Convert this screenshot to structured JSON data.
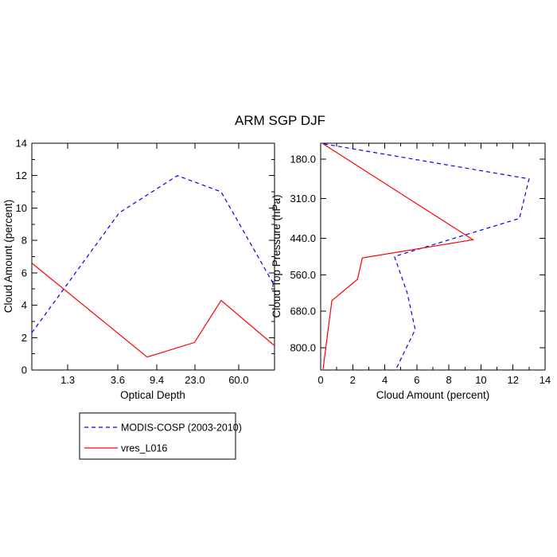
{
  "title": "ARM SGP DJF",
  "colors": {
    "modis": "#0000ff",
    "model": "#ff0000",
    "frame": "#000000",
    "background": "#ffffff"
  },
  "legend": {
    "entries": [
      {
        "label": "MODIS-COSP (2003-2010)",
        "color": "#0000ff",
        "dashed": true
      },
      {
        "label": "vres_L016",
        "color": "#ff0000",
        "dashed": false
      }
    ]
  },
  "chart_data": [
    {
      "id": "tau",
      "type": "line",
      "title": "",
      "xlabel": "Optical Depth",
      "ylabel": "Cloud Amount (percent)",
      "x_axis": {
        "kind": "fraction-of-axis (optical depth bins, nonlinear)",
        "min": 0,
        "max": 1,
        "ticks": [
          {
            "label": "1.3",
            "value": 0.148
          },
          {
            "label": "3.6",
            "value": 0.354
          },
          {
            "label": "9.4",
            "value": 0.515
          },
          {
            "label": "23.0",
            "value": 0.672
          },
          {
            "label": "60.0",
            "value": 0.852
          }
        ]
      },
      "y_axis": {
        "kind": "linear",
        "min": 0,
        "max": 14,
        "minor_step": 1,
        "ticks": [
          {
            "label": "0",
            "value": 0
          },
          {
            "label": "2",
            "value": 2
          },
          {
            "label": "4",
            "value": 4
          },
          {
            "label": "6",
            "value": 6
          },
          {
            "label": "8",
            "value": 8
          },
          {
            "label": "10",
            "value": 10
          },
          {
            "label": "12",
            "value": 12
          },
          {
            "label": "14",
            "value": 14
          }
        ]
      },
      "series": [
        {
          "name": "MODIS-COSP (2003-2010)",
          "color": "#0000ff",
          "dashed": true,
          "points": [
            {
              "x": 0.0,
              "y": 2.3
            },
            {
              "x": 0.36,
              "y": 9.7
            },
            {
              "x": 0.6,
              "y": 12.0
            },
            {
              "x": 0.78,
              "y": 11.0
            },
            {
              "x": 1.0,
              "y": 5.2
            }
          ]
        },
        {
          "name": "vres_L016",
          "color": "#ff0000",
          "dashed": false,
          "points": [
            {
              "x": 0.0,
              "y": 6.6
            },
            {
              "x": 0.475,
              "y": 0.8
            },
            {
              "x": 0.67,
              "y": 1.7
            },
            {
              "x": 0.78,
              "y": 4.3
            },
            {
              "x": 1.0,
              "y": 1.5
            }
          ]
        }
      ]
    },
    {
      "id": "ctp",
      "type": "line",
      "title": "",
      "xlabel": "Cloud Amount (percent)",
      "ylabel": "Cloud Top Pressure (hPa)",
      "x_axis": {
        "kind": "linear",
        "min": 0,
        "max": 14,
        "minor_step": 1,
        "ticks": [
          {
            "label": "0",
            "value": 0
          },
          {
            "label": "2",
            "value": 2
          },
          {
            "label": "4",
            "value": 4
          },
          {
            "label": "6",
            "value": 6
          },
          {
            "label": "8",
            "value": 8
          },
          {
            "label": "10",
            "value": 10
          },
          {
            "label": "12",
            "value": 12
          },
          {
            "label": "14",
            "value": 14
          }
        ]
      },
      "y_axis": {
        "kind": "linear pressure, increasing downward (hPa)",
        "increases_downward": true,
        "min": 128,
        "max": 873,
        "ticks": [
          {
            "label": "180.0",
            "value": 180
          },
          {
            "label": "310.0",
            "value": 310
          },
          {
            "label": "440.0",
            "value": 440
          },
          {
            "label": "560.0",
            "value": 560
          },
          {
            "label": "680.0",
            "value": 680
          },
          {
            "label": "800.0",
            "value": 800
          }
        ]
      },
      "series": [
        {
          "name": "MODIS-COSP (2003-2010)",
          "color": "#0000ff",
          "dashed": true,
          "points": [
            {
              "x": 0.2,
              "y": 130
            },
            {
              "x": 13.0,
              "y": 245
            },
            {
              "x": 12.4,
              "y": 375
            },
            {
              "x": 4.6,
              "y": 500
            },
            {
              "x": 5.4,
              "y": 620
            },
            {
              "x": 5.9,
              "y": 740
            },
            {
              "x": 4.7,
              "y": 870
            }
          ]
        },
        {
          "name": "vres_L016",
          "color": "#ff0000",
          "dashed": false,
          "points": [
            {
              "x": 0.15,
              "y": 130
            },
            {
              "x": 9.5,
              "y": 445
            },
            {
              "x": 2.6,
              "y": 505
            },
            {
              "x": 2.3,
              "y": 575
            },
            {
              "x": 0.7,
              "y": 645
            },
            {
              "x": 0.45,
              "y": 745
            },
            {
              "x": 0.15,
              "y": 870
            }
          ]
        }
      ]
    }
  ]
}
